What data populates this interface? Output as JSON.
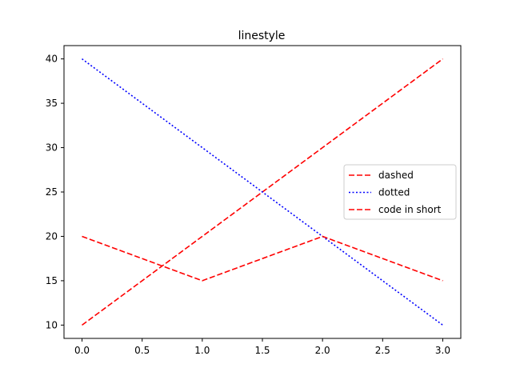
{
  "chart_data": {
    "type": "line",
    "title": "linestyle",
    "xlabel": "",
    "ylabel": "",
    "xlim": [
      -0.15,
      3.15
    ],
    "ylim": [
      8.5,
      41.5
    ],
    "x_ticks": [
      0.0,
      0.5,
      1.0,
      1.5,
      2.0,
      2.5,
      3.0
    ],
    "x_tick_labels": [
      "0.0",
      "0.5",
      "1.0",
      "1.5",
      "2.0",
      "2.5",
      "3.0"
    ],
    "y_ticks": [
      10,
      15,
      20,
      25,
      30,
      35,
      40
    ],
    "y_tick_labels": [
      "10",
      "15",
      "20",
      "25",
      "30",
      "35",
      "40"
    ],
    "grid": false,
    "legend_position": "center-right",
    "series": [
      {
        "name": "dashed",
        "x": [
          0,
          1,
          2,
          3
        ],
        "y": [
          10,
          20,
          30,
          40
        ],
        "color": "#ff0000",
        "linestyle": "dashed"
      },
      {
        "name": "dotted",
        "x": [
          0,
          1,
          2,
          3
        ],
        "y": [
          40,
          30,
          20,
          10
        ],
        "color": "#0000ff",
        "linestyle": "dotted"
      },
      {
        "name": "code in short",
        "x": [
          0,
          1,
          2,
          3
        ],
        "y": [
          20,
          15,
          20,
          15
        ],
        "color": "#ff0000",
        "linestyle": "dashed"
      }
    ]
  }
}
